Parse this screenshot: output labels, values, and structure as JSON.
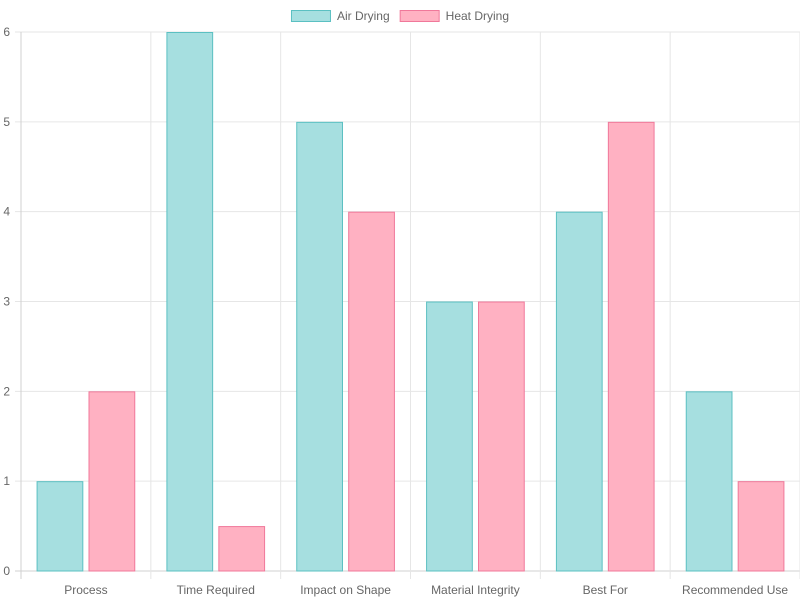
{
  "chart_data": {
    "type": "bar",
    "categories": [
      "Process",
      "Time Required",
      "Impact on Shape",
      "Material Integrity",
      "Best For",
      "Recommended Use"
    ],
    "series": [
      {
        "name": "Air Drying",
        "values": [
          1,
          6,
          5,
          3,
          4,
          2
        ],
        "fill": "#a6dfe0",
        "stroke": "#5bc0c2"
      },
      {
        "name": "Heat Drying",
        "values": [
          2,
          0.5,
          4,
          3,
          5,
          1
        ],
        "fill": "#ffb1c2",
        "stroke": "#f0789a"
      }
    ],
    "ylim": [
      0,
      6
    ],
    "yticks": [
      0,
      1,
      2,
      3,
      4,
      5,
      6
    ],
    "grid": true,
    "legend_position": "top-center"
  }
}
